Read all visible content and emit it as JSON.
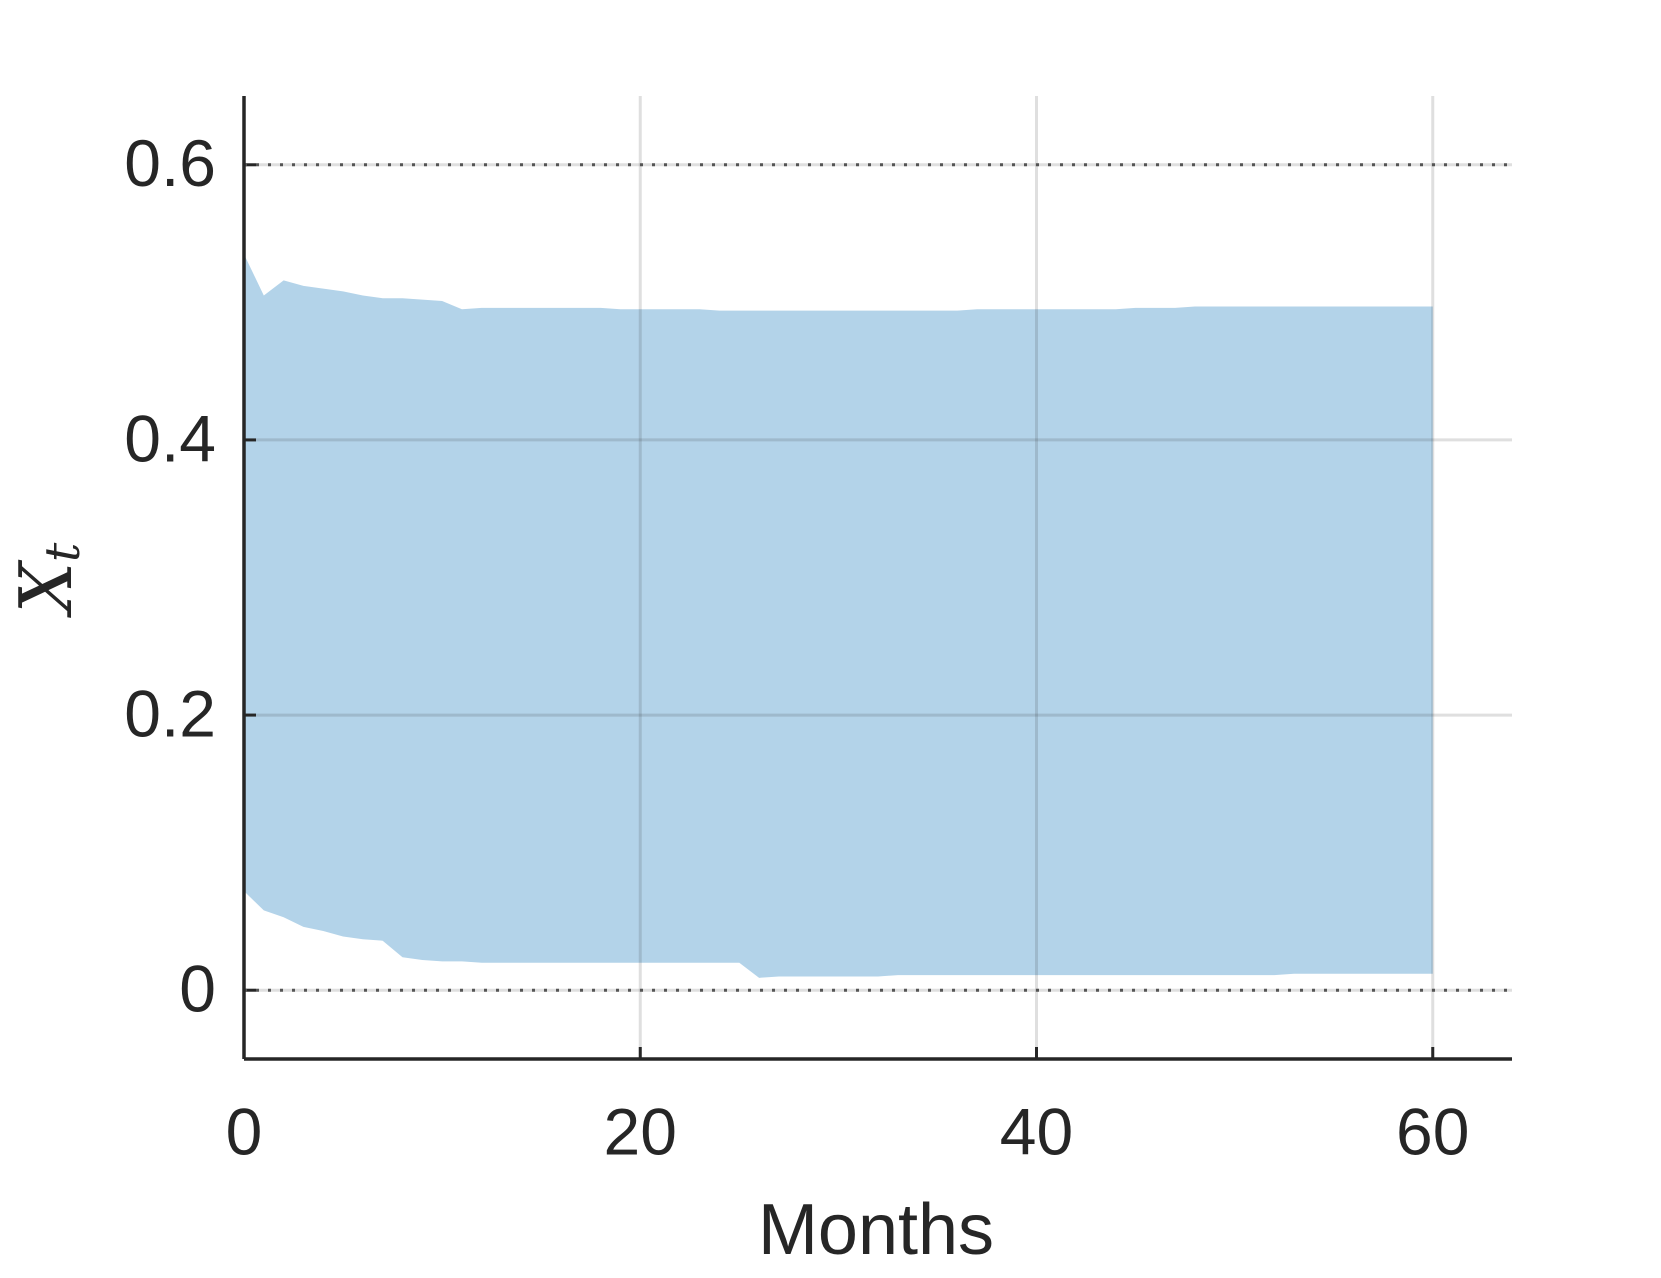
{
  "chart_data": {
    "type": "band",
    "xlabel": "Months",
    "ylabel": {
      "base": "X",
      "sub": "t"
    },
    "x": [
      0,
      1,
      2,
      3,
      4,
      5,
      6,
      7,
      8,
      9,
      10,
      11,
      12,
      13,
      14,
      15,
      16,
      17,
      18,
      19,
      20,
      21,
      22,
      23,
      24,
      25,
      26,
      27,
      28,
      29,
      30,
      31,
      32,
      33,
      34,
      35,
      36,
      37,
      38,
      39,
      40,
      41,
      42,
      43,
      44,
      45,
      46,
      47,
      48,
      49,
      50,
      51,
      52,
      53,
      54,
      55,
      56,
      57,
      58,
      59,
      60
    ],
    "upper": [
      0.535,
      0.505,
      0.516,
      0.512,
      0.51,
      0.508,
      0.505,
      0.503,
      0.503,
      0.502,
      0.501,
      0.495,
      0.496,
      0.496,
      0.496,
      0.496,
      0.496,
      0.496,
      0.496,
      0.495,
      0.495,
      0.495,
      0.495,
      0.495,
      0.494,
      0.494,
      0.494,
      0.494,
      0.494,
      0.494,
      0.494,
      0.494,
      0.494,
      0.494,
      0.494,
      0.494,
      0.494,
      0.495,
      0.495,
      0.495,
      0.495,
      0.495,
      0.495,
      0.495,
      0.495,
      0.496,
      0.496,
      0.496,
      0.497,
      0.497,
      0.497,
      0.497,
      0.497,
      0.497,
      0.497,
      0.497,
      0.497,
      0.497,
      0.497,
      0.497,
      0.497
    ],
    "lower": [
      0.072,
      0.058,
      0.053,
      0.046,
      0.043,
      0.039,
      0.037,
      0.036,
      0.024,
      0.022,
      0.021,
      0.021,
      0.02,
      0.02,
      0.02,
      0.02,
      0.02,
      0.02,
      0.02,
      0.02,
      0.02,
      0.02,
      0.02,
      0.02,
      0.02,
      0.02,
      0.009,
      0.01,
      0.01,
      0.01,
      0.01,
      0.01,
      0.01,
      0.011,
      0.011,
      0.011,
      0.011,
      0.011,
      0.011,
      0.011,
      0.011,
      0.011,
      0.011,
      0.011,
      0.011,
      0.011,
      0.011,
      0.011,
      0.011,
      0.011,
      0.011,
      0.011,
      0.011,
      0.012,
      0.012,
      0.012,
      0.012,
      0.012,
      0.012,
      0.012,
      0.012
    ],
    "color": "#b3d3e9",
    "xlim": [
      0,
      64
    ],
    "ylim": [
      -0.05,
      0.65
    ],
    "xticks": [
      0,
      20,
      40,
      60
    ],
    "yticks": [
      0,
      0.2,
      0.4,
      0.6
    ],
    "reference_lines": [
      0,
      0.6
    ],
    "grid": true
  }
}
